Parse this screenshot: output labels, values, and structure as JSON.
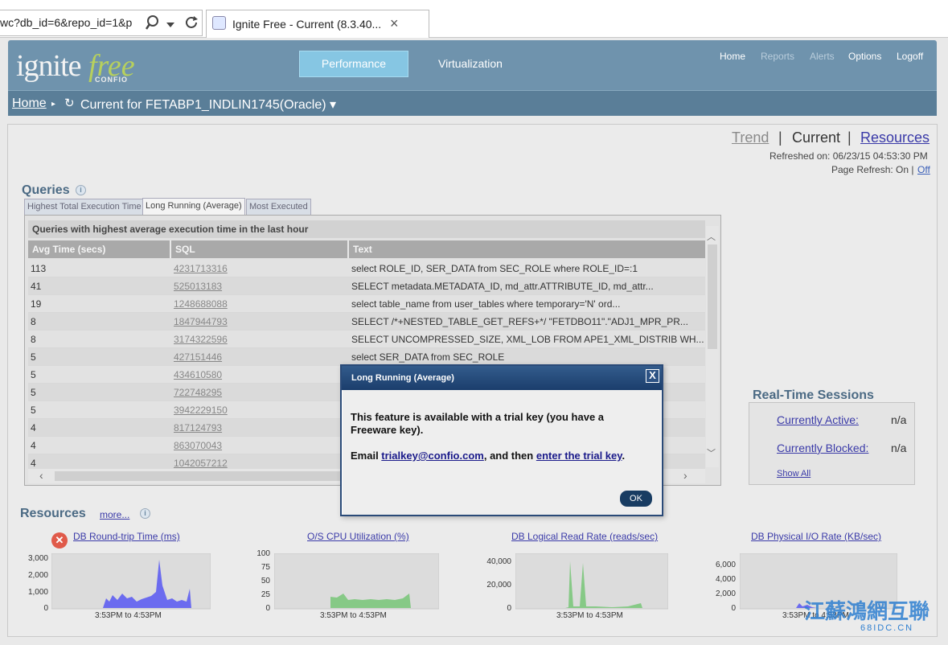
{
  "browser": {
    "address_text": "wc?db_id=6&repo_id=1&p",
    "tab_title": "Ignite Free - Current (8.3.40...",
    "tab_close": "×"
  },
  "header": {
    "logo_main": "ignite",
    "logo_accent": "free",
    "logo_sub": "CONFIO",
    "nav_tabs": [
      {
        "label": "Performance",
        "active": true
      },
      {
        "label": "Virtualization",
        "active": false
      }
    ],
    "top_links": [
      {
        "label": "Home",
        "enabled": true
      },
      {
        "label": "Reports",
        "enabled": false
      },
      {
        "label": "Alerts",
        "enabled": false
      },
      {
        "label": "Options",
        "enabled": true
      },
      {
        "label": "Logoff",
        "enabled": true
      }
    ],
    "breadcrumb": {
      "home": "Home",
      "current": "Current for FETABP1_INDLIN1745(Oracle) ▾"
    }
  },
  "view_switch": {
    "trend": "Trend",
    "separator": "|",
    "current": "Current",
    "resources": "Resources"
  },
  "refresh": {
    "refreshed_on": "Refreshed on: 06/23/15 04:53:30 PM",
    "page_refresh": "Page Refresh: On |",
    "off_link": "Off"
  },
  "queries": {
    "title": "Queries",
    "tabs": [
      {
        "label": "Highest Total Execution Time",
        "active": false
      },
      {
        "label": "Long Running (Average)",
        "active": true
      },
      {
        "label": "Most Executed",
        "active": false
      }
    ],
    "table_heading": "Queries with highest average execution time in the last hour",
    "columns": [
      "Avg Time (secs)",
      "SQL",
      "Text"
    ],
    "rows": [
      [
        "113",
        "4231713316",
        "select ROLE_ID, SER_DATA from SEC_ROLE where ROLE_ID=:1"
      ],
      [
        "41",
        "525013183",
        "SELECT metadata.METADATA_ID, md_attr.ATTRIBUTE_ID, md_attr..."
      ],
      [
        "19",
        "1248688088",
        "select table_name from user_tables where temporary='N' ord..."
      ],
      [
        "8",
        "1847944793",
        "SELECT /*+NESTED_TABLE_GET_REFS+*/ \"FETDBO11\".\"ADJ1_MPR_PR..."
      ],
      [
        "8",
        "3174322596",
        "SELECT UNCOMPRESSED_SIZE, XML_LOB FROM APE1_XML_DISTRIB WH..."
      ],
      [
        "5",
        "427151446",
        "select SER_DATA from SEC_ROLE"
      ],
      [
        "5",
        "434610580",
        "CON..."
      ],
      [
        "5",
        "722748295",
        ""
      ],
      [
        "5",
        "3942229150",
        "EXT..."
      ],
      [
        "4",
        "817124793",
        "ILES"
      ],
      [
        "4",
        "863070043",
        "_V..."
      ],
      [
        "4",
        "1042057212",
        "1 )"
      ]
    ]
  },
  "sessions": {
    "title": "Real-Time Sessions",
    "active_label": "Currently Active:",
    "active_value": "n/a",
    "blocked_label": "Currently Blocked:",
    "blocked_value": "n/a",
    "show_all": "Show All"
  },
  "resources": {
    "title": "Resources",
    "more": "more...",
    "charts": [
      {
        "title": "DB Round-trip Time (ms)",
        "range": "3:53PM to 4:53PM",
        "ticks": [
          "3,000",
          "2,000",
          "1,000",
          "0"
        ],
        "color": "#6b6bef"
      },
      {
        "title": "O/S CPU Utilization (%)",
        "range": "3:53PM to 4:53PM",
        "ticks": [
          "100",
          "75",
          "50",
          "25",
          "0"
        ],
        "color": "#86c986"
      },
      {
        "title": "DB Logical Read Rate (reads/sec)",
        "range": "3:53PM to 4:53PM",
        "ticks": [
          "40,000",
          "20,000",
          "0"
        ],
        "color": "#86c986"
      },
      {
        "title": "DB Physical I/O Rate (KB/sec)",
        "range": "3:53PM to 4:53PM",
        "ticks": [
          "6,000",
          "4,000",
          "2,000",
          "0"
        ],
        "color": "#6b6bef"
      }
    ]
  },
  "modal": {
    "title": "Long Running (Average)",
    "close": "X",
    "message": "This feature is available with a trial key (you have a Freeware key).",
    "email_prefix": "Email ",
    "email_link": "trialkey@confio.com",
    "email_mid": ", and then ",
    "trial_link": "enter the trial key",
    "email_suffix": ".",
    "ok": "OK"
  },
  "watermark": {
    "text": "江蘇鴻網互聯",
    "sub": "68IDC.CN"
  }
}
